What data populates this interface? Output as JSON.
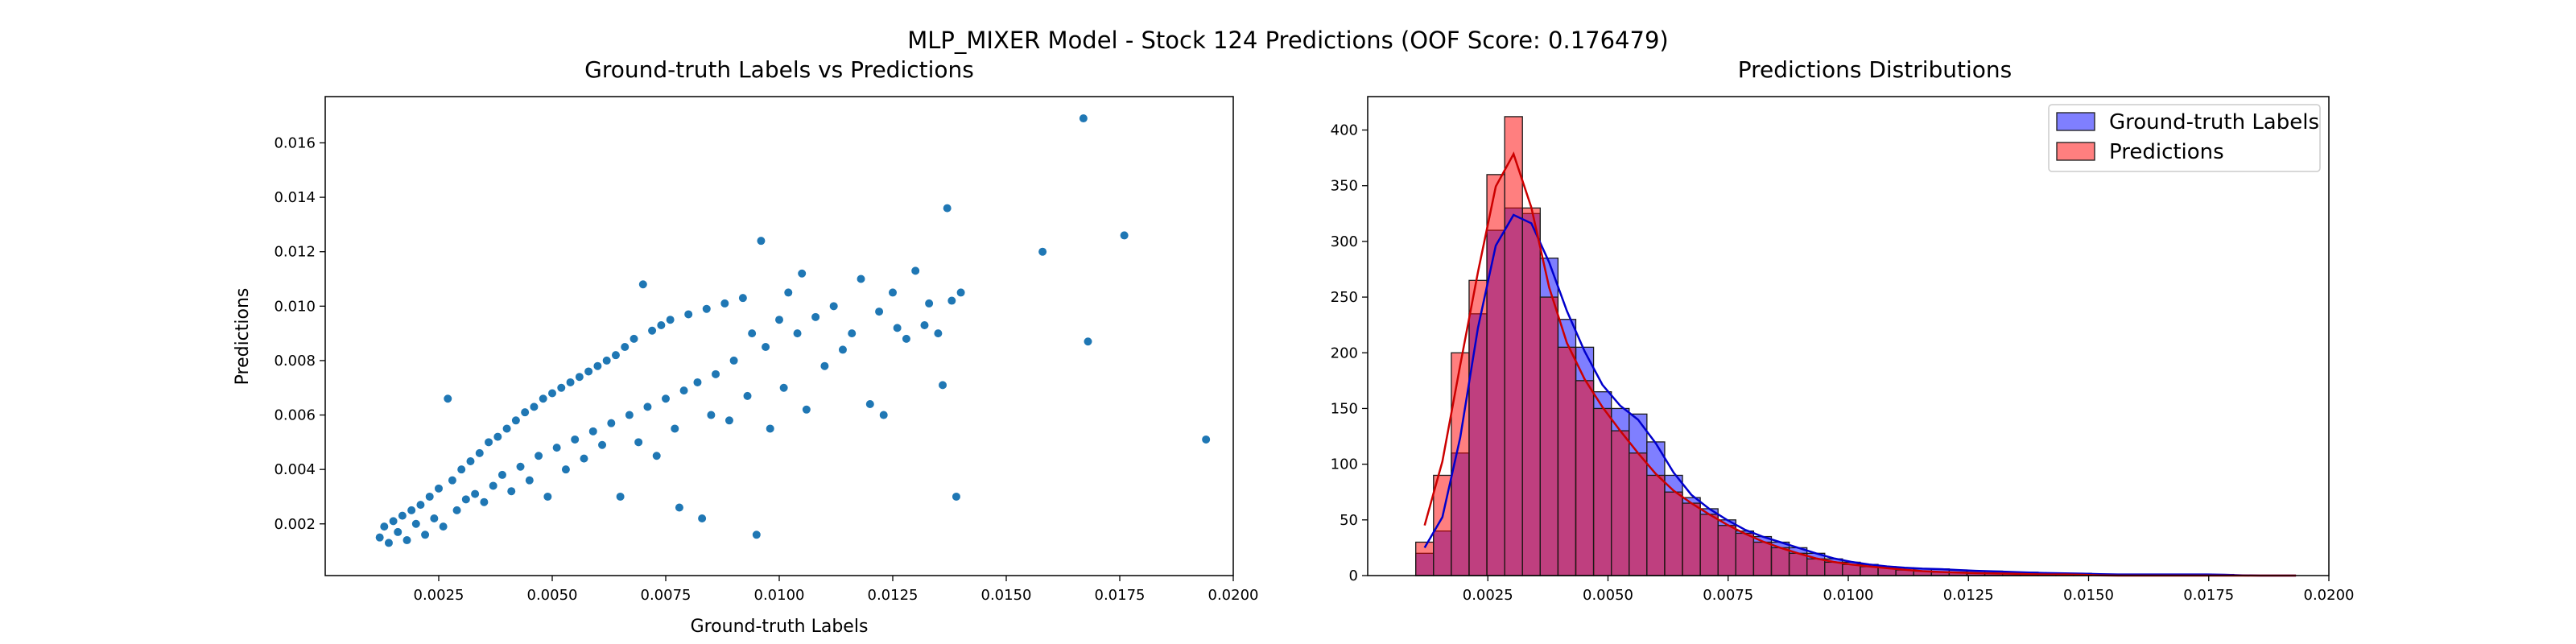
{
  "figure": {
    "suptitle": "MLP_MIXER Model - Stock 124 Predictions (OOF Score: 0.176479)"
  },
  "chart_data": [
    {
      "type": "scatter",
      "title": "Ground-truth Labels vs Predictions",
      "xlabel": "Ground-truth Labels",
      "ylabel": "Predictions",
      "xlim": [
        0.0,
        0.02
      ],
      "ylim": [
        0.0001,
        0.0177
      ],
      "xticks": [
        "0.0025",
        "0.0050",
        "0.0075",
        "0.0100",
        "0.0125",
        "0.0150",
        "0.0175",
        "0.0200"
      ],
      "xtick_values": [
        0.0025,
        0.005,
        0.0075,
        0.01,
        0.0125,
        0.015,
        0.0175,
        0.02
      ],
      "yticks": [
        "0.002",
        "0.004",
        "0.006",
        "0.008",
        "0.010",
        "0.012",
        "0.014",
        "0.016"
      ],
      "ytick_values": [
        0.002,
        0.004,
        0.006,
        0.008,
        0.01,
        0.012,
        0.014,
        0.016
      ],
      "grid": false,
      "color": "#1f77b4",
      "points": [
        [
          0.0012,
          0.0015
        ],
        [
          0.0013,
          0.0019
        ],
        [
          0.0014,
          0.0013
        ],
        [
          0.0015,
          0.0021
        ],
        [
          0.0016,
          0.0017
        ],
        [
          0.0017,
          0.0023
        ],
        [
          0.0018,
          0.0014
        ],
        [
          0.0019,
          0.0025
        ],
        [
          0.002,
          0.002
        ],
        [
          0.0021,
          0.0027
        ],
        [
          0.0022,
          0.0016
        ],
        [
          0.0023,
          0.003
        ],
        [
          0.0024,
          0.0022
        ],
        [
          0.0025,
          0.0033
        ],
        [
          0.0026,
          0.0019
        ],
        [
          0.0027,
          0.0066
        ],
        [
          0.0028,
          0.0036
        ],
        [
          0.0029,
          0.0025
        ],
        [
          0.003,
          0.004
        ],
        [
          0.0031,
          0.0029
        ],
        [
          0.0032,
          0.0043
        ],
        [
          0.0033,
          0.0031
        ],
        [
          0.0034,
          0.0046
        ],
        [
          0.0035,
          0.0028
        ],
        [
          0.0036,
          0.005
        ],
        [
          0.0037,
          0.0034
        ],
        [
          0.0038,
          0.0052
        ],
        [
          0.0039,
          0.0038
        ],
        [
          0.004,
          0.0055
        ],
        [
          0.0041,
          0.0032
        ],
        [
          0.0042,
          0.0058
        ],
        [
          0.0043,
          0.0041
        ],
        [
          0.0044,
          0.0061
        ],
        [
          0.0045,
          0.0036
        ],
        [
          0.0046,
          0.0063
        ],
        [
          0.0047,
          0.0045
        ],
        [
          0.0048,
          0.0066
        ],
        [
          0.0049,
          0.003
        ],
        [
          0.005,
          0.0068
        ],
        [
          0.0051,
          0.0048
        ],
        [
          0.0052,
          0.007
        ],
        [
          0.0053,
          0.004
        ],
        [
          0.0054,
          0.0072
        ],
        [
          0.0055,
          0.0051
        ],
        [
          0.0056,
          0.0074
        ],
        [
          0.0057,
          0.0044
        ],
        [
          0.0058,
          0.0076
        ],
        [
          0.0059,
          0.0054
        ],
        [
          0.006,
          0.0078
        ],
        [
          0.0061,
          0.0049
        ],
        [
          0.0062,
          0.008
        ],
        [
          0.0063,
          0.0057
        ],
        [
          0.0064,
          0.0082
        ],
        [
          0.0065,
          0.003
        ],
        [
          0.0066,
          0.0085
        ],
        [
          0.0067,
          0.006
        ],
        [
          0.0068,
          0.0088
        ],
        [
          0.0069,
          0.005
        ],
        [
          0.007,
          0.0108
        ],
        [
          0.0071,
          0.0063
        ],
        [
          0.0072,
          0.0091
        ],
        [
          0.0073,
          0.0045
        ],
        [
          0.0074,
          0.0093
        ],
        [
          0.0075,
          0.0066
        ],
        [
          0.0076,
          0.0095
        ],
        [
          0.0077,
          0.0055
        ],
        [
          0.0078,
          0.0026
        ],
        [
          0.0079,
          0.0069
        ],
        [
          0.008,
          0.0097
        ],
        [
          0.0082,
          0.0072
        ],
        [
          0.0083,
          0.0022
        ],
        [
          0.0084,
          0.0099
        ],
        [
          0.0085,
          0.006
        ],
        [
          0.0086,
          0.0075
        ],
        [
          0.0088,
          0.0101
        ],
        [
          0.0089,
          0.0058
        ],
        [
          0.009,
          0.008
        ],
        [
          0.0092,
          0.0103
        ],
        [
          0.0093,
          0.0067
        ],
        [
          0.0094,
          0.009
        ],
        [
          0.0095,
          0.0016
        ],
        [
          0.0096,
          0.0124
        ],
        [
          0.0097,
          0.0085
        ],
        [
          0.0098,
          0.0055
        ],
        [
          0.01,
          0.0095
        ],
        [
          0.0101,
          0.007
        ],
        [
          0.0102,
          0.0105
        ],
        [
          0.0104,
          0.009
        ],
        [
          0.0105,
          0.0112
        ],
        [
          0.0106,
          0.0062
        ],
        [
          0.0108,
          0.0096
        ],
        [
          0.011,
          0.0078
        ],
        [
          0.0112,
          0.01
        ],
        [
          0.0114,
          0.0084
        ],
        [
          0.0116,
          0.009
        ],
        [
          0.0118,
          0.011
        ],
        [
          0.012,
          0.0064
        ],
        [
          0.0122,
          0.0098
        ],
        [
          0.0123,
          0.006
        ],
        [
          0.0125,
          0.0105
        ],
        [
          0.0126,
          0.0092
        ],
        [
          0.0128,
          0.0088
        ],
        [
          0.013,
          0.0113
        ],
        [
          0.0132,
          0.0093
        ],
        [
          0.0133,
          0.0101
        ],
        [
          0.0135,
          0.009
        ],
        [
          0.0136,
          0.0071
        ],
        [
          0.0137,
          0.0136
        ],
        [
          0.0138,
          0.0102
        ],
        [
          0.0139,
          0.003
        ],
        [
          0.014,
          0.0105
        ],
        [
          0.0158,
          0.012
        ],
        [
          0.0167,
          0.0169
        ],
        [
          0.0168,
          0.0087
        ],
        [
          0.0176,
          0.0126
        ],
        [
          0.0194,
          0.0051
        ]
      ]
    },
    {
      "type": "bar",
      "subtype": "histogram",
      "title": "Predictions Distributions",
      "xlabel": "",
      "ylabel": "",
      "xlim": [
        0.0,
        0.02
      ],
      "ylim": [
        0,
        430
      ],
      "xticks": [
        "0.0025",
        "0.0050",
        "0.0075",
        "0.0100",
        "0.0125",
        "0.0150",
        "0.0175",
        "0.0200"
      ],
      "xtick_values": [
        0.0025,
        0.005,
        0.0075,
        0.01,
        0.0125,
        0.015,
        0.0175,
        0.02
      ],
      "yticks": [
        "0",
        "50",
        "100",
        "150",
        "200",
        "250",
        "300",
        "350",
        "400"
      ],
      "ytick_values": [
        0,
        50,
        100,
        150,
        200,
        250,
        300,
        350,
        400
      ],
      "legend": "top-right",
      "grid": false,
      "series": [
        {
          "name": "Ground-truth Labels",
          "color": "#0000ff",
          "bin_start": 0.001,
          "bin_width": 0.00037,
          "values": [
            20,
            40,
            110,
            235,
            310,
            330,
            325,
            285,
            230,
            205,
            165,
            150,
            145,
            120,
            90,
            70,
            60,
            50,
            40,
            35,
            30,
            25,
            20,
            15,
            12,
            10,
            8,
            7,
            6,
            6,
            5,
            4,
            4,
            3,
            3,
            2,
            2,
            2,
            1,
            1,
            1,
            1,
            1,
            1,
            1,
            1,
            0,
            0,
            0,
            0
          ]
        },
        {
          "name": "Predictions",
          "color": "#ff0000",
          "bin_start": 0.001,
          "bin_width": 0.00037,
          "values": [
            30,
            90,
            200,
            265,
            360,
            412,
            330,
            250,
            205,
            175,
            150,
            130,
            110,
            90,
            75,
            65,
            55,
            45,
            38,
            30,
            25,
            20,
            15,
            12,
            10,
            8,
            7,
            5,
            4,
            3,
            3,
            2,
            2,
            2,
            1,
            1,
            1,
            1,
            0,
            0,
            0,
            0,
            0,
            0,
            0,
            0,
            0,
            0,
            0,
            0
          ]
        }
      ]
    }
  ]
}
